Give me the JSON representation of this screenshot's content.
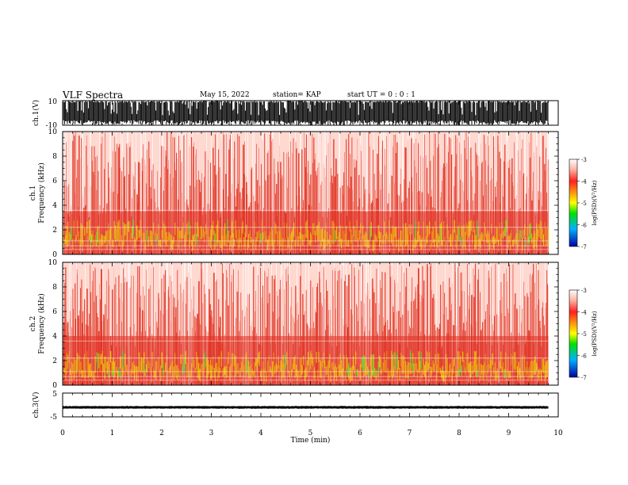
{
  "header": {
    "title": "VLF Spectra",
    "date": "May 15, 2022",
    "station": "station= KAP",
    "start_ut": "start  UT =   0 : 0  : 1"
  },
  "colors": {
    "spec_low": "#e03020",
    "spec_mid": "#f0e000",
    "spec_high": "#40e040",
    "trace": "#000000"
  },
  "chart_data": [
    {
      "type": "line",
      "ylabel": "ch.1(V)",
      "ylim": [
        -10,
        10
      ],
      "yticks": [
        "10",
        "-10"
      ],
      "x_range_min": [
        0,
        9.8
      ],
      "y_min_typical": -10,
      "y_max_typical": 10
    },
    {
      "type": "heatmap",
      "ylabel": "ch.1\nFrequency  (kHz)",
      "ylim": [
        0,
        10
      ],
      "yticks": [
        "0",
        "2",
        "4",
        "6",
        "8",
        "10"
      ],
      "colorbar_label": "log(PSD)(V²/Hz)",
      "colorbar_ticks": [
        "-3",
        "-4",
        "-5",
        "-6",
        "-7"
      ],
      "colorbar_range": [
        -7,
        -3
      ],
      "dense_band_khz": [
        0,
        3.5
      ]
    },
    {
      "type": "heatmap",
      "ylabel": "ch.2\nFrequency  (kHz)",
      "ylim": [
        0,
        10
      ],
      "yticks": [
        "0",
        "2",
        "4",
        "6",
        "8",
        "10"
      ],
      "colorbar_label": "log(PSD)(V²/Hz)",
      "colorbar_ticks": [
        "-3",
        "-4",
        "-5",
        "-6",
        "-7"
      ],
      "colorbar_range": [
        -7,
        -3
      ],
      "dense_band_khz": [
        0,
        4
      ]
    },
    {
      "type": "line",
      "ylabel": "ch.3(V)",
      "ylim": [
        -5,
        5
      ],
      "yticks": [
        "5",
        "-5"
      ],
      "x_range_min": [
        0,
        9.8
      ],
      "y_center": -1,
      "y_spread": 0.6
    }
  ],
  "x_axis": {
    "label": "Time  (min)",
    "range": [
      0,
      10
    ],
    "ticks": [
      "0",
      "1",
      "2",
      "3",
      "4",
      "5",
      "6",
      "7",
      "8",
      "9",
      "10"
    ]
  }
}
